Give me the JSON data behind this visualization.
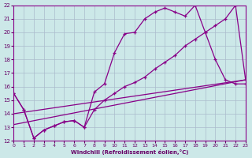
{
  "xlabel": "Windchill (Refroidissement éolien,°C)",
  "xlim": [
    0,
    23
  ],
  "ylim": [
    12,
    22
  ],
  "xticks": [
    0,
    1,
    2,
    3,
    4,
    5,
    6,
    7,
    8,
    9,
    10,
    11,
    12,
    13,
    14,
    15,
    16,
    17,
    18,
    19,
    20,
    21,
    22,
    23
  ],
  "yticks": [
    12,
    13,
    14,
    15,
    16,
    17,
    18,
    19,
    20,
    21,
    22
  ],
  "background_color": "#cce8e8",
  "grid_color": "#aaccaa",
  "line_color": "#880088",
  "line1_x": [
    0,
    1,
    2,
    3,
    4,
    5,
    6,
    7,
    8,
    9,
    10,
    11,
    12,
    13,
    14,
    15,
    16,
    17,
    18,
    19,
    20,
    21,
    22,
    23
  ],
  "line1_y": [
    15.5,
    14.3,
    12.2,
    12.8,
    13.1,
    13.4,
    13.5,
    13.0,
    15.6,
    16.2,
    18.5,
    19.9,
    20.0,
    21.0,
    21.5,
    21.8,
    21.5,
    21.2,
    22.0,
    20.0,
    18.0,
    16.5,
    16.2,
    16.2
  ],
  "line2_x": [
    0,
    1,
    2,
    3,
    4,
    5,
    6,
    7,
    8,
    9,
    10,
    11,
    12,
    13,
    14,
    15,
    16,
    17,
    18,
    19,
    20,
    21,
    22,
    23
  ],
  "line2_y": [
    15.5,
    14.3,
    12.2,
    12.8,
    13.1,
    13.4,
    13.5,
    13.0,
    14.3,
    15.0,
    15.5,
    16.0,
    16.3,
    16.7,
    17.3,
    17.8,
    18.3,
    19.0,
    19.5,
    20.0,
    20.5,
    21.0,
    22.0,
    16.5
  ],
  "line3_x": [
    0,
    23
  ],
  "line3_y": [
    14.0,
    16.5
  ],
  "line4_x": [
    0,
    23
  ],
  "line4_y": [
    13.2,
    16.5
  ]
}
